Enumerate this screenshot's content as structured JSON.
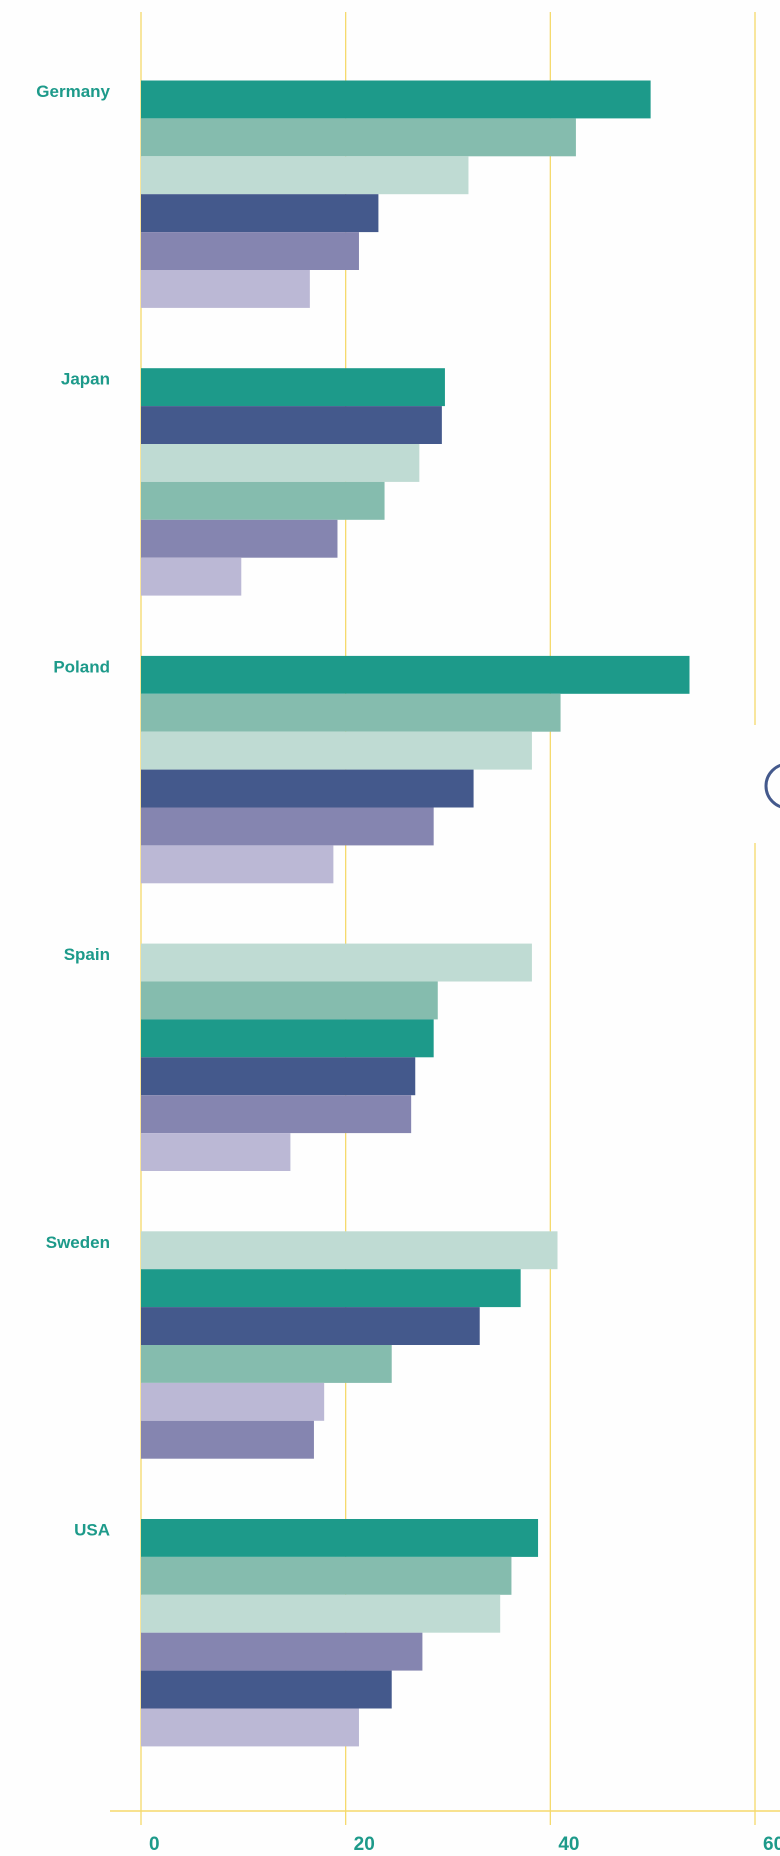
{
  "chart_data": {
    "type": "bar",
    "orientation": "horizontal",
    "xlim": [
      0,
      60
    ],
    "xticks": [
      0,
      20,
      40,
      60
    ],
    "grid": true,
    "groups": [
      {
        "label": "Germany",
        "bars": [
          {
            "color": "#1d9a8a",
            "value": 49.8
          },
          {
            "color": "#85bcae",
            "value": 42.5
          },
          {
            "color": "#bfdbd3",
            "value": 32
          },
          {
            "color": "#44598c",
            "value": 23.2
          },
          {
            "color": "#8585b0",
            "value": 21.3
          },
          {
            "color": "#bbb8d5",
            "value": 16.5
          }
        ]
      },
      {
        "label": "Japan",
        "bars": [
          {
            "color": "#1d9a8a",
            "value": 29.7
          },
          {
            "color": "#44598c",
            "value": 29.4
          },
          {
            "color": "#bfdbd3",
            "value": 27.2
          },
          {
            "color": "#85bcae",
            "value": 23.8
          },
          {
            "color": "#8585b0",
            "value": 19.2
          },
          {
            "color": "#bbb8d5",
            "value": 9.8
          }
        ]
      },
      {
        "label": "Poland",
        "bars": [
          {
            "color": "#1d9a8a",
            "value": 53.6
          },
          {
            "color": "#85bcae",
            "value": 41
          },
          {
            "color": "#bfdbd3",
            "value": 38.2
          },
          {
            "color": "#44598c",
            "value": 32.5
          },
          {
            "color": "#8585b0",
            "value": 28.6
          },
          {
            "color": "#bbb8d5",
            "value": 18.8
          }
        ]
      },
      {
        "label": "Spain",
        "bars": [
          {
            "color": "#bfdbd3",
            "value": 38.2
          },
          {
            "color": "#85bcae",
            "value": 29
          },
          {
            "color": "#1d9a8a",
            "value": 28.6
          },
          {
            "color": "#44598c",
            "value": 26.8
          },
          {
            "color": "#8585b0",
            "value": 26.4
          },
          {
            "color": "#bbb8d5",
            "value": 14.6
          }
        ]
      },
      {
        "label": "Sweden",
        "bars": [
          {
            "color": "#bfdbd3",
            "value": 40.7
          },
          {
            "color": "#1d9a8a",
            "value": 37.1
          },
          {
            "color": "#44598c",
            "value": 33.1
          },
          {
            "color": "#85bcae",
            "value": 24.5
          },
          {
            "color": "#bbb8d5",
            "value": 17.9
          },
          {
            "color": "#8585b0",
            "value": 16.9
          }
        ]
      },
      {
        "label": "USA",
        "bars": [
          {
            "color": "#1d9a8a",
            "value": 38.8
          },
          {
            "color": "#85bcae",
            "value": 36.2
          },
          {
            "color": "#bfdbd3",
            "value": 35.1
          },
          {
            "color": "#8585b0",
            "value": 27.5
          },
          {
            "color": "#44598c",
            "value": 24.5
          },
          {
            "color": "#bbb8d5",
            "value": 21.3
          }
        ]
      }
    ]
  }
}
